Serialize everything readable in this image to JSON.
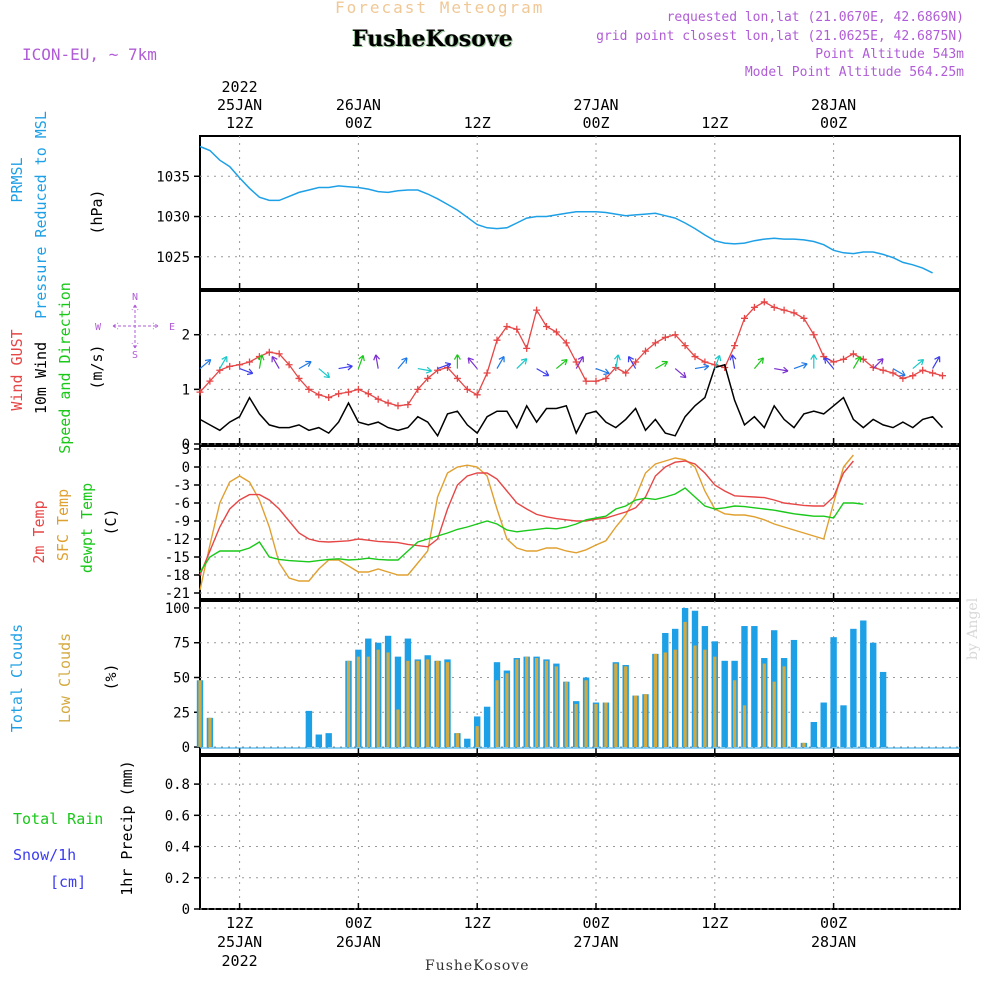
{
  "header": {
    "title": "Forecast Meteogram",
    "location": "FusheKosove",
    "model": "ICON-EU, ~ 7km",
    "requested": "requested lon,lat (21.0670E, 42.6869N)",
    "closest": "grid point closest lon,lat (21.0625E, 42.6875N)",
    "altitude": "Point Altitude 543m",
    "model_altitude": "Model Point Altitude 564.25m",
    "watermark": "by Angel",
    "footer": "FusheKosove"
  },
  "time_axis": {
    "top_labels": [
      {
        "t": 12,
        "l1": "2022",
        "l2": "25JAN",
        "l3": "12Z"
      },
      {
        "t": 24,
        "l1": "",
        "l2": "26JAN",
        "l3": "00Z"
      },
      {
        "t": 36,
        "l1": "",
        "l2": "",
        "l3": "12Z"
      },
      {
        "t": 48,
        "l1": "",
        "l2": "27JAN",
        "l3": "00Z"
      },
      {
        "t": 60,
        "l1": "",
        "l2": "",
        "l3": "12Z"
      },
      {
        "t": 72,
        "l1": "",
        "l2": "28JAN",
        "l3": "00Z"
      }
    ],
    "bottom_labels": [
      {
        "t": 12,
        "l1": "12Z",
        "l2": "25JAN",
        "l3": "2022"
      },
      {
        "t": 24,
        "l1": "00Z",
        "l2": "26JAN",
        "l3": ""
      },
      {
        "t": 36,
        "l1": "12Z",
        "l2": "",
        "l3": ""
      },
      {
        "t": 48,
        "l1": "00Z",
        "l2": "27JAN",
        "l3": ""
      },
      {
        "t": 60,
        "l1": "12Z",
        "l2": "",
        "l3": ""
      },
      {
        "t": 72,
        "l1": "00Z",
        "l2": "28JAN",
        "l3": ""
      }
    ]
  },
  "colors": {
    "pressure": "#1ea0e6",
    "gust": "#e64646",
    "wind": "#000000",
    "temp2m": "#e64646",
    "sfc": "#e0a030",
    "dewpt": "#19c819",
    "total_clouds": "#1ea0e6",
    "low_clouds": "#d4aa40",
    "rain": "#19c819",
    "snow": "#3c3cf0",
    "axis_label": "#b05cd6"
  },
  "chart_data": [
    {
      "type": "line",
      "panel": "pressure",
      "title": "PRMSL Pressure Reduced to MSL",
      "ylabel": "(hPa)",
      "label_line1": "PRMSL",
      "label_line2": "Pressure Reduced to MSL",
      "yticks": [
        1025,
        1030,
        1035
      ],
      "ylim": [
        1021,
        1040
      ],
      "x_step_hours": 1,
      "series": [
        {
          "name": "PRMSL",
          "values": [
            1038.7,
            1038.2,
            1037.0,
            1036.2,
            1034.8,
            1033.5,
            1032.4,
            1032.0,
            1032.0,
            1032.5,
            1033.0,
            1033.3,
            1033.6,
            1033.6,
            1033.8,
            1033.7,
            1033.6,
            1033.4,
            1033.1,
            1033.0,
            1033.2,
            1033.3,
            1033.3,
            1032.8,
            1032.2,
            1031.5,
            1030.8,
            1029.9,
            1029.0,
            1028.6,
            1028.5,
            1028.6,
            1029.2,
            1029.8,
            1030.0,
            1030.0,
            1030.2,
            1030.4,
            1030.6,
            1030.6,
            1030.6,
            1030.5,
            1030.3,
            1030.1,
            1030.2,
            1030.3,
            1030.4,
            1030.1,
            1029.8,
            1029.2,
            1028.5,
            1027.7,
            1027.0,
            1026.7,
            1026.6,
            1026.7,
            1027.0,
            1027.2,
            1027.3,
            1027.2,
            1027.2,
            1027.1,
            1026.9,
            1026.5,
            1025.8,
            1025.5,
            1025.4,
            1025.6,
            1025.6,
            1025.3,
            1024.9,
            1024.3,
            1024.0,
            1023.6,
            1023.0
          ]
        }
      ]
    },
    {
      "type": "line",
      "panel": "wind",
      "title": "Wind GUST 10m Wind Speed and Direction",
      "ylabel": "(m/s)",
      "label_gust": "Wind GUST",
      "label_wind": "10m Wind",
      "label_dir": "Speed and Direction",
      "compass": {
        "n": "N",
        "s": "S",
        "w": "W",
        "e": "E"
      },
      "yticks": [
        0,
        1,
        2
      ],
      "ylim": [
        0,
        2.8
      ],
      "x_step_hours": 1,
      "series": [
        {
          "name": "Wind GUST",
          "values": [
            0.95,
            1.15,
            1.35,
            1.42,
            1.45,
            1.5,
            1.6,
            1.68,
            1.65,
            1.45,
            1.2,
            1.0,
            0.9,
            0.85,
            0.92,
            0.95,
            1.0,
            0.92,
            0.82,
            0.75,
            0.7,
            0.72,
            1.0,
            1.2,
            1.35,
            1.4,
            1.2,
            1.0,
            0.9,
            1.3,
            1.9,
            2.15,
            2.1,
            1.75,
            2.45,
            2.15,
            2.05,
            1.85,
            1.5,
            1.15,
            1.15,
            1.2,
            1.4,
            1.3,
            1.5,
            1.7,
            1.85,
            1.95,
            2.0,
            1.8,
            1.6,
            1.5,
            1.45,
            1.4,
            1.8,
            2.3,
            2.5,
            2.6,
            2.5,
            2.45,
            2.4,
            2.3,
            2.0,
            1.6,
            1.5,
            1.55,
            1.65,
            1.55,
            1.4,
            1.35,
            1.3,
            1.2,
            1.25,
            1.35,
            1.3,
            1.25
          ]
        },
        {
          "name": "10m Wind",
          "values": [
            0.45,
            0.35,
            0.25,
            0.4,
            0.5,
            0.85,
            0.55,
            0.35,
            0.3,
            0.3,
            0.35,
            0.25,
            0.3,
            0.2,
            0.4,
            0.75,
            0.4,
            0.35,
            0.4,
            0.3,
            0.25,
            0.3,
            0.5,
            0.4,
            0.15,
            0.55,
            0.6,
            0.35,
            0.2,
            0.5,
            0.6,
            0.6,
            0.3,
            0.7,
            0.4,
            0.65,
            0.65,
            0.7,
            0.2,
            0.55,
            0.6,
            0.4,
            0.3,
            0.45,
            0.65,
            0.25,
            0.45,
            0.2,
            0.15,
            0.5,
            0.7,
            0.85,
            1.4,
            1.45,
            0.8,
            0.35,
            0.5,
            0.3,
            0.7,
            0.45,
            0.3,
            0.55,
            0.6,
            0.55,
            0.7,
            0.85,
            0.45,
            0.3,
            0.45,
            0.35,
            0.3,
            0.4,
            0.3,
            0.45,
            0.5,
            0.3
          ]
        }
      ]
    },
    {
      "type": "line",
      "panel": "temperature",
      "title": "2m Temp SFC Temp dewpt Temp",
      "ylabel": "(C)",
      "label_t2m": "2m Temp",
      "label_sfc": "SFC Temp",
      "label_dew": "dewpt Temp",
      "yticks": [
        -21,
        -18,
        -15,
        -12,
        -9,
        -6,
        -3,
        0,
        3
      ],
      "ylim": [
        -22,
        3.5
      ],
      "x_step_hours": 1,
      "series": [
        {
          "name": "2m Temp",
          "values": [
            -18,
            -14,
            -10,
            -7,
            -5.5,
            -4.6,
            -4.6,
            -5.5,
            -7,
            -9,
            -11,
            -12,
            -12.4,
            -12.5,
            -12.4,
            -12.3,
            -12.0,
            -12.2,
            -12.4,
            -12.5,
            -12.6,
            -12.9,
            -13.1,
            -13.3,
            -12,
            -7,
            -3,
            -1.5,
            -1,
            -1,
            -2,
            -4,
            -6,
            -7,
            -7.9,
            -8.3,
            -8.6,
            -8.8,
            -9,
            -9,
            -8.7,
            -8.5,
            -8,
            -7.5,
            -6.8,
            -5,
            -1.5,
            0,
            0.8,
            1,
            0.5,
            -1,
            -3,
            -4,
            -4.8,
            -4.9,
            -5,
            -5.1,
            -5.5,
            -6,
            -6.2,
            -6.4,
            -6.5,
            -6.5,
            -5,
            -1,
            1
          ]
        },
        {
          "name": "SFC Temp",
          "values": [
            -20.5,
            -13,
            -6,
            -2.5,
            -1.5,
            -2.5,
            -5.5,
            -10,
            -16,
            -18.5,
            -19,
            -19,
            -17,
            -15.5,
            -15.5,
            -16.5,
            -17.5,
            -17.5,
            -17,
            -17.5,
            -18,
            -18,
            -16,
            -14,
            -5,
            -1,
            0,
            0.3,
            0,
            -1.5,
            -7,
            -12,
            -13.5,
            -14,
            -14,
            -13.5,
            -13.5,
            -14,
            -14.3,
            -13.8,
            -13,
            -12.3,
            -10,
            -8,
            -5,
            -1,
            0.5,
            1,
            1.5,
            1.2,
            0,
            -4,
            -7,
            -7.8,
            -8,
            -8,
            -8.3,
            -8.8,
            -9.5,
            -10,
            -10.5,
            -11,
            -11.5,
            -12,
            -6,
            0,
            2
          ]
        },
        {
          "name": "dewpt Temp",
          "values": [
            -17.5,
            -15,
            -14,
            -14,
            -14,
            -13.5,
            -12.5,
            -15,
            -15.4,
            -15.6,
            -15.7,
            -15.8,
            -15.6,
            -15.4,
            -15.3,
            -15.5,
            -15.4,
            -15.2,
            -15.4,
            -15.5,
            -15.5,
            -14,
            -12.5,
            -12,
            -11.5,
            -11,
            -10.4,
            -10,
            -9.5,
            -9,
            -9.5,
            -10.5,
            -10.8,
            -10.6,
            -10.4,
            -10.2,
            -10.3,
            -10,
            -9.5,
            -8.8,
            -8.5,
            -8.2,
            -7,
            -6.5,
            -5.5,
            -5.2,
            -5.4,
            -5,
            -4.5,
            -3.5,
            -5,
            -6.5,
            -7,
            -6.8,
            -6.5,
            -6.6,
            -6.8,
            -7,
            -7.2,
            -7.5,
            -7.8,
            -8,
            -8.2,
            -8.2,
            -8.5,
            -6,
            -6,
            -6.2
          ]
        }
      ]
    },
    {
      "type": "bar",
      "panel": "clouds",
      "title": "Total Clouds Low Clouds",
      "ylabel": "(%)",
      "label_total": "Total Clouds",
      "label_low": "Low Clouds",
      "yticks": [
        0,
        25,
        50,
        75,
        100
      ],
      "ylim": [
        -5,
        105
      ],
      "x_step_hours": 1,
      "series": [
        {
          "name": "Total Clouds",
          "values": [
            48,
            21,
            0,
            0,
            0,
            0,
            0,
            0,
            0,
            0,
            0,
            26,
            9,
            10,
            0,
            62,
            70,
            78,
            75,
            80,
            65,
            78,
            63,
            66,
            62,
            63,
            10,
            6,
            22,
            29,
            61,
            55,
            64,
            65,
            65,
            63,
            60,
            47,
            33,
            50,
            32,
            32,
            61,
            59,
            37,
            38,
            67,
            82,
            85,
            100,
            98,
            87,
            76,
            62,
            62,
            87,
            87,
            64,
            84,
            64,
            77,
            3,
            18,
            32,
            79,
            30,
            85,
            91,
            75,
            54,
            0,
            0,
            0,
            0,
            0
          ]
        },
        {
          "name": "Low Clouds",
          "values": [
            48,
            21,
            0,
            0,
            0,
            0,
            0,
            0,
            0,
            0,
            0,
            0,
            0,
            0,
            0,
            62,
            65,
            65,
            70,
            68,
            27,
            62,
            62,
            63,
            62,
            61,
            10,
            0,
            15,
            0,
            48,
            53,
            63,
            65,
            64,
            62,
            58,
            47,
            31,
            48,
            31,
            32,
            60,
            58,
            37,
            38,
            67,
            68,
            70,
            90,
            73,
            70,
            65,
            0,
            48,
            30,
            0,
            60,
            47,
            58,
            0,
            3,
            0,
            0,
            0,
            0,
            0,
            0,
            0,
            0,
            0,
            0,
            0,
            0,
            0
          ]
        }
      ]
    },
    {
      "type": "line",
      "panel": "precip",
      "title": "Total Rain Snow/1h [cm]",
      "ylabel": "1hr Precip (mm)",
      "label_rain": "Total Rain",
      "label_snow": "Snow/1h",
      "label_cm": "[cm]",
      "yticks": [
        0,
        0.2,
        0.4,
        0.6,
        0.8
      ],
      "ylim": [
        0,
        0.98
      ],
      "series": [
        {
          "name": "Total Rain",
          "values": []
        },
        {
          "name": "Snow/1h",
          "values": []
        }
      ]
    }
  ]
}
